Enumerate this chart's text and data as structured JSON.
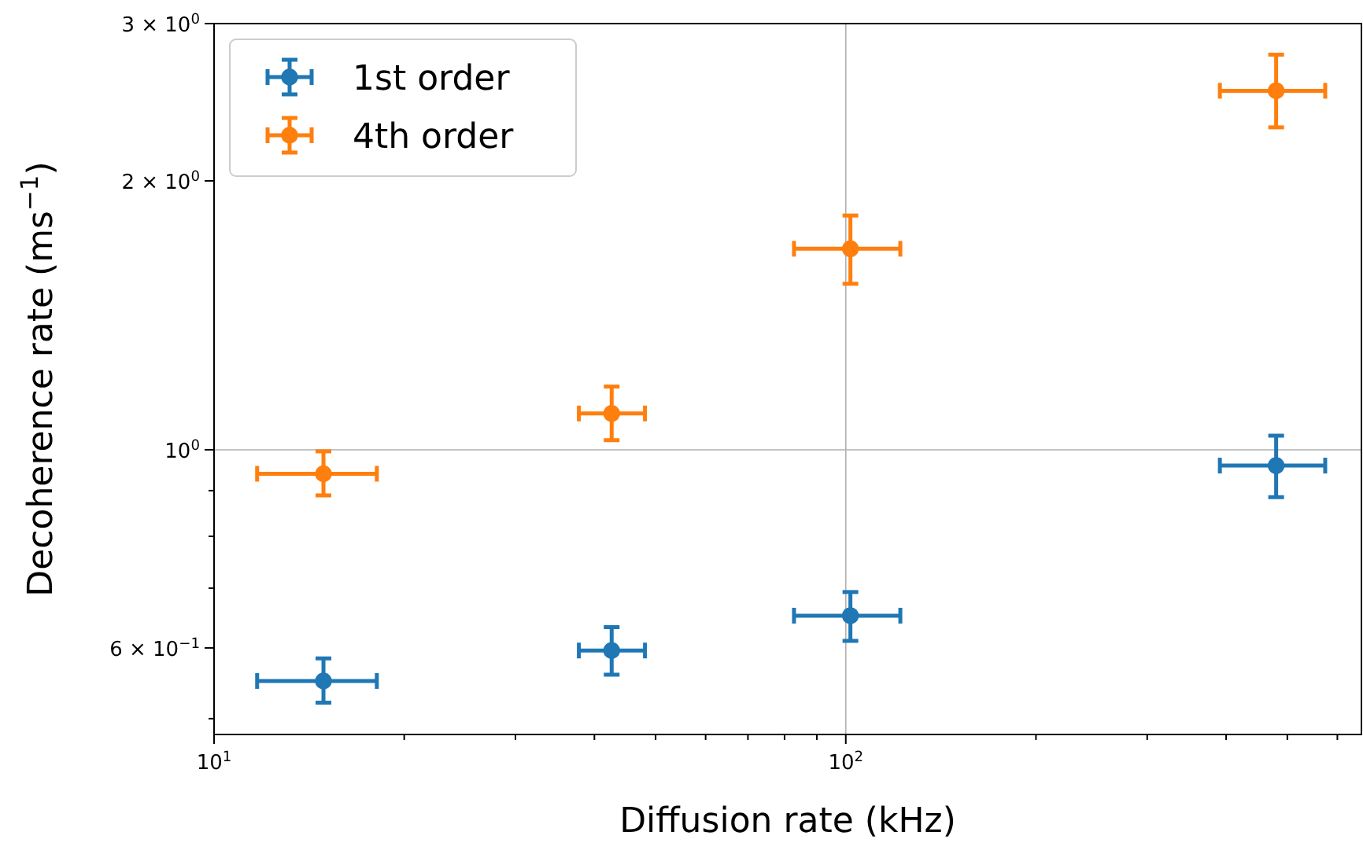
{
  "chart_data": {
    "type": "scatter",
    "xlabel": "Diffusion rate (kHz)",
    "ylabel": "Decoherence rate (ms$^{−1}$)",
    "log": "xy",
    "grid": true,
    "legend": "top left",
    "marker": "circle",
    "xlim": [
      10,
      655
    ],
    "ylim": [
      0.48,
      3
    ],
    "xticks": [
      {
        "value": 10,
        "label": "10$^{1}$"
      },
      {
        "value": 20,
        "label": null
      },
      {
        "value": 30,
        "label": null
      },
      {
        "value": 40,
        "label": null
      },
      {
        "value": 50,
        "label": null
      },
      {
        "value": 60,
        "label": null
      },
      {
        "value": 70,
        "label": null
      },
      {
        "value": 80,
        "label": null
      },
      {
        "value": 90,
        "label": null
      },
      {
        "value": 100,
        "label": "10$^{2}$"
      },
      {
        "value": 200,
        "label": null
      },
      {
        "value": 300,
        "label": null
      },
      {
        "value": 400,
        "label": null
      },
      {
        "value": 500,
        "label": null
      },
      {
        "value": 600,
        "label": null
      }
    ],
    "yticks": [
      {
        "value": 0.5,
        "label": null
      },
      {
        "value": 0.6,
        "label": "6 × 10$^{−1}$"
      },
      {
        "value": 0.7,
        "label": null
      },
      {
        "value": 0.8,
        "label": null
      },
      {
        "value": 0.9,
        "label": null
      },
      {
        "value": 1,
        "label": "10$^{0}$"
      },
      {
        "value": 2,
        "label": "2 × 10$^{0}$"
      },
      {
        "value": 3,
        "label": "3 × 10$^{0}$"
      }
    ],
    "series": [
      {
        "name": "1st order",
        "color": "#1f77b4",
        "x": [
          14.9,
          42.6,
          101.7,
          480
        ],
        "values": [
          0.551,
          0.596,
          0.652,
          0.96
        ],
        "errors": [
          [
            0.521,
            0.584
          ],
          [
            0.56,
            0.633
          ],
          [
            0.611,
            0.693
          ],
          [
            0.885,
            1.037
          ]
        ],
        "xerrors": [
          [
            11.7,
            18.1
          ],
          [
            37.8,
            48.1
          ],
          [
            82.8,
            122
          ],
          [
            391,
            574
          ]
        ]
      },
      {
        "name": "4th order",
        "color": "#ff7f0e",
        "x": [
          14.9,
          42.6,
          101.7,
          480
        ],
        "values": [
          0.94,
          1.098,
          1.679,
          2.523
        ],
        "errors": [
          [
            0.889,
            0.996
          ],
          [
            1.025,
            1.177
          ],
          [
            1.534,
            1.829
          ],
          [
            2.296,
            2.769
          ]
        ],
        "xerrors": [
          [
            11.7,
            18.1
          ],
          [
            37.8,
            48.1
          ],
          [
            82.8,
            122
          ],
          [
            391,
            574
          ]
        ]
      }
    ]
  }
}
